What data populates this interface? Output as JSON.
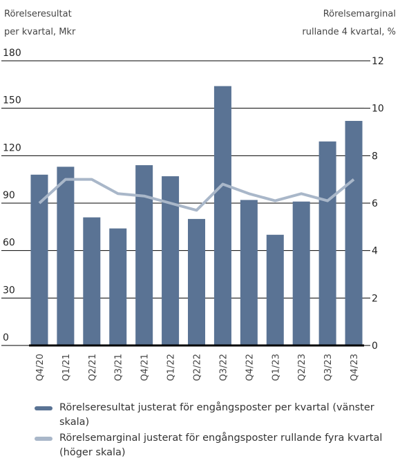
{
  "chart_data": {
    "type": "bar_line",
    "ylabel": [
      "Rörelseresultat",
      "per kvartal, Mkr"
    ],
    "y2label": [
      "Rörelsemarginal",
      "rullande 4 kvartal, %"
    ],
    "categories": [
      "Q4/20",
      "Q1/21",
      "Q2/21",
      "Q3/21",
      "Q4/21",
      "Q1/22",
      "Q2/22",
      "Q3/22",
      "Q4/22",
      "Q1/23",
      "Q2/23",
      "Q3/23",
      "Q4/23"
    ],
    "series": [
      {
        "name": "Rörelseresultat justerat för engångsposter per kvartal (vänster skala)",
        "type": "bar",
        "color": "#5a7394",
        "values": [
          108,
          113,
          81,
          74,
          114,
          107,
          80,
          164,
          92,
          70,
          91,
          129,
          142
        ]
      },
      {
        "name": "Rörelsemarginal justerat för engångsposter rullande fyra kvartal (höger skala)",
        "type": "line",
        "axis": "y2",
        "color": "#a9b7c9",
        "values": [
          6.0,
          7.0,
          7.0,
          6.4,
          6.3,
          6.0,
          5.7,
          6.8,
          6.4,
          6.1,
          6.4,
          6.1,
          7.0
        ]
      }
    ],
    "ylim": [
      0,
      180
    ],
    "yticks": [
      0,
      30,
      60,
      90,
      120,
      150,
      180
    ],
    "y2lim": [
      0,
      12
    ],
    "y2ticks": [
      0,
      2,
      4,
      6,
      8,
      10,
      12
    ],
    "grid": true
  }
}
